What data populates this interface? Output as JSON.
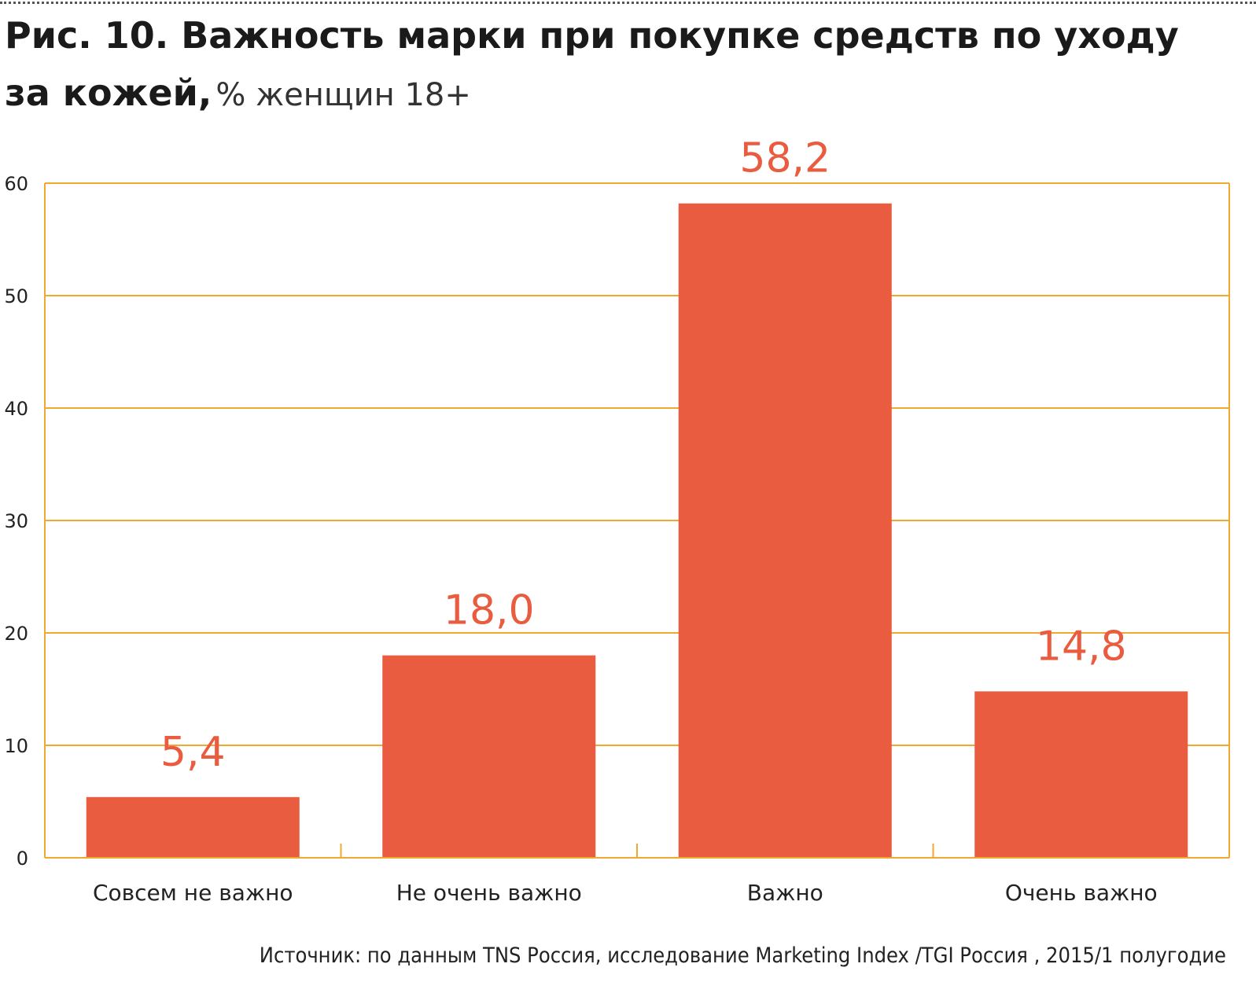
{
  "header": {
    "title_bold": "Рис. 10. Важность марки при покупке средств по уходу за кожей,",
    "title_unit": "% женщин 18+"
  },
  "source": "Источник: по данным TNS Россия, исследование Marketing Index /TGI Россия , 2015/1 полугодие",
  "colors": {
    "bar": "#e95c3f",
    "grid": "#f0a830",
    "label": "#e95c3f"
  },
  "chart_data": {
    "type": "bar",
    "title": "Рис. 10. Важность марки при покупке средств по уходу за кожей, % женщин 18+",
    "categories": [
      "Совсем не важно",
      "Не очень важно",
      "Важно",
      "Очень важно"
    ],
    "values": [
      5.4,
      18.0,
      58.2,
      14.8
    ],
    "value_labels": [
      "5,4",
      "18,0",
      "58,2",
      "14,8"
    ],
    "ylim": [
      0,
      60
    ],
    "yticks": [
      0,
      10,
      20,
      30,
      40,
      50,
      60
    ],
    "xlabel": "",
    "ylabel": "",
    "grid": true,
    "legend": "none"
  }
}
